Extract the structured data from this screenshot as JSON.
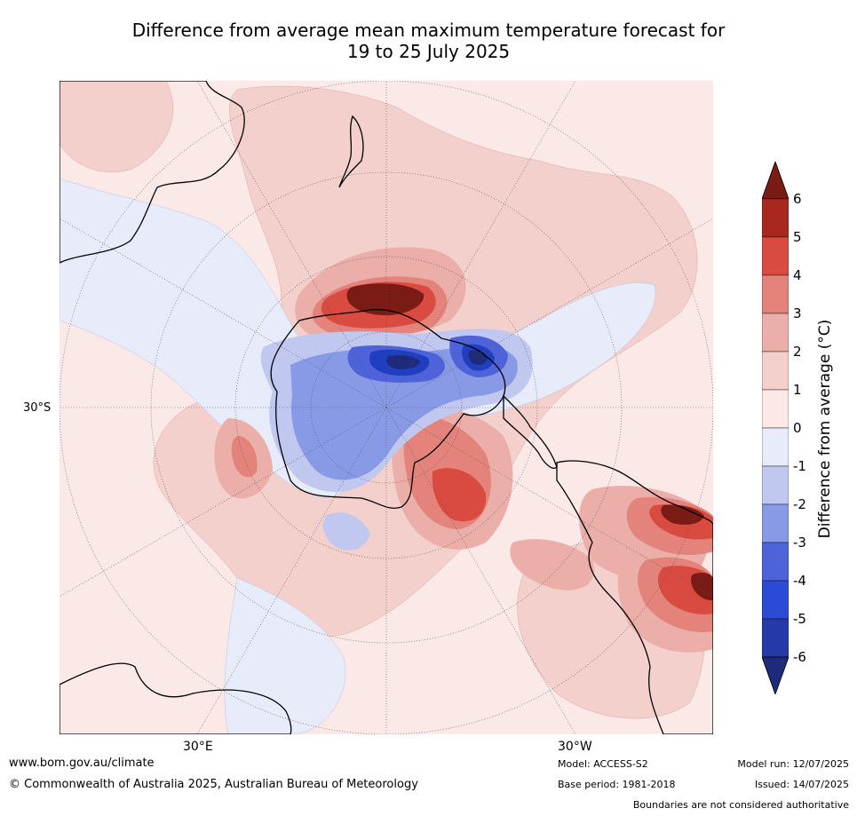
{
  "title": {
    "line1": "Difference from average mean maximum temperature forecast for",
    "line2": "19 to 25 July 2025"
  },
  "map": {
    "projection": "south polar stereographic",
    "lat_label": "30°S",
    "lon_labels": [
      "30°E",
      "30°W"
    ],
    "colors": {
      "ocean_neutral": "#fbe9e7",
      "warm_1": "#f4d0cc",
      "warm_2": "#ebaea8",
      "warm_3": "#e4837b",
      "warm_4": "#d94b40",
      "warm_5": "#a8281f",
      "warm_6": "#7a1b16",
      "cool_1": "#e7ebfa",
      "cool_2": "#c0c8f0",
      "cool_3": "#8899e6",
      "cool_4": "#4e63d9",
      "cool_5": "#1f3fc0",
      "cool_6": "#1d2b7a"
    }
  },
  "colorbar": {
    "label": "Difference from average (°C)",
    "ticks": [
      "6",
      "5",
      "4",
      "3",
      "2",
      "1",
      "0",
      "-1",
      "-2",
      "-3",
      "-4",
      "-5",
      "-6"
    ],
    "colors": [
      "#a8281f",
      "#d94b40",
      "#e4837b",
      "#ebaea8",
      "#f4d0cc",
      "#fbe9e7",
      "#e7ebfa",
      "#c0c8f0",
      "#8899e6",
      "#4e63d9",
      "#2b4ad6",
      "#253aa8"
    ],
    "top_arrow_color": "#7a1b16",
    "bottom_arrow_color": "#1d2b7a"
  },
  "footer": {
    "website": "www.bom.gov.au/climate",
    "copyright": "© Commonwealth of Australia 2025, Australian Bureau of Meteorology",
    "model": "Model: ACCESS-S2",
    "base_period": "Base period: 1981-2018",
    "model_run": "Model run: 12/07/2025",
    "issued": "Issued: 14/07/2025",
    "disclaimer": "Boundaries are not considered authoritative"
  }
}
